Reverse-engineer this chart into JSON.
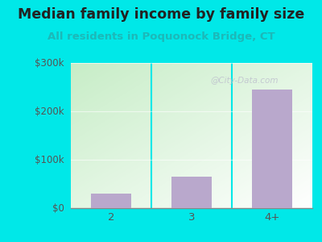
{
  "title": "Median family income by family size",
  "subtitle": "All residents in Poquonock Bridge, CT",
  "categories": [
    "2",
    "3",
    "4+"
  ],
  "values": [
    30000,
    65000,
    245000
  ],
  "bar_color": "#b9a8cc",
  "title_fontsize": 12.5,
  "subtitle_fontsize": 9.5,
  "subtitle_color": "#1cb8b8",
  "title_color": "#222222",
  "background_outer": "#00e8e8",
  "ylim": [
    0,
    300000
  ],
  "yticks": [
    0,
    100000,
    200000,
    300000
  ],
  "ytick_labels": [
    "$0",
    "$100k",
    "$200k",
    "$300k"
  ],
  "watermark": "@City-Data.com",
  "axis_color": "#555555",
  "gradient_top_left": "#c8e8c8",
  "gradient_bottom_right": "#f0fff8"
}
